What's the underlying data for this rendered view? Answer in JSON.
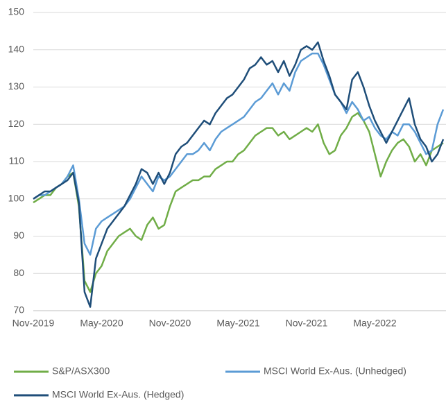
{
  "chart_data": {
    "type": "line",
    "categories": [
      "Nov-2019",
      null,
      null,
      null,
      null,
      null,
      null,
      null,
      null,
      null,
      null,
      null,
      "May-2020",
      null,
      null,
      null,
      null,
      null,
      null,
      null,
      null,
      null,
      null,
      null,
      "Nov-2020",
      null,
      null,
      null,
      null,
      null,
      null,
      null,
      null,
      null,
      null,
      null,
      "May-2021",
      null,
      null,
      null,
      null,
      null,
      null,
      null,
      null,
      null,
      null,
      null,
      "Nov-2021",
      null,
      null,
      null,
      null,
      null,
      null,
      null,
      null,
      null,
      null,
      null,
      "May-2022",
      null,
      null,
      null,
      null,
      null,
      null,
      null,
      null,
      null,
      null,
      null,
      null
    ],
    "series": [
      {
        "name": "S&P/ASX300",
        "color": "#70ad47",
        "values": [
          99,
          100,
          101,
          101,
          103,
          104,
          106,
          107,
          98,
          78,
          75,
          80,
          82,
          86,
          88,
          90,
          91,
          92,
          90,
          89,
          93,
          95,
          92,
          93,
          98,
          102,
          103,
          104,
          105,
          105,
          106,
          106,
          108,
          109,
          110,
          110,
          112,
          113,
          115,
          117,
          118,
          119,
          119,
          117,
          118,
          116,
          117,
          118,
          119,
          118,
          120,
          115,
          112,
          113,
          117,
          119,
          122,
          123,
          121,
          118,
          112,
          106,
          110,
          113,
          115,
          116,
          114,
          110,
          112,
          109,
          113,
          114,
          115
        ]
      },
      {
        "name": "MSCI World Ex-Aus. (Unhedged)",
        "color": "#5b9bd5",
        "values": [
          100,
          101,
          101,
          102,
          103,
          104,
          106,
          109,
          100,
          88,
          85,
          92,
          94,
          95,
          96,
          97,
          98,
          100,
          103,
          106,
          104,
          102,
          106,
          105,
          106,
          108,
          110,
          112,
          112,
          113,
          115,
          113,
          116,
          118,
          119,
          120,
          121,
          122,
          124,
          126,
          127,
          129,
          131,
          128,
          131,
          129,
          134,
          137,
          138,
          139,
          139,
          136,
          132,
          128,
          126,
          123,
          126,
          124,
          121,
          122,
          119,
          117,
          116,
          118,
          117,
          120,
          120,
          118,
          115,
          112,
          113,
          120,
          124
        ]
      },
      {
        "name": "MSCI World Ex-Aus. (Hedged)",
        "color": "#1f4e79",
        "values": [
          100,
          101,
          102,
          102,
          103,
          104,
          105,
          107,
          99,
          75,
          71,
          84,
          88,
          92,
          94,
          96,
          98,
          101,
          104,
          108,
          107,
          104,
          107,
          104,
          107,
          112,
          114,
          115,
          117,
          119,
          121,
          120,
          123,
          125,
          127,
          128,
          130,
          132,
          135,
          136,
          138,
          136,
          137,
          134,
          137,
          133,
          136,
          140,
          141,
          140,
          142,
          137,
          133,
          128,
          126,
          124,
          132,
          134,
          130,
          125,
          121,
          118,
          115,
          118,
          121,
          124,
          127,
          120,
          116,
          114,
          110,
          112,
          116
        ]
      }
    ],
    "ylim": [
      70,
      150
    ],
    "yticks": [
      70,
      80,
      90,
      100,
      110,
      120,
      130,
      140,
      150
    ],
    "grid": true,
    "legend": "bottom"
  }
}
